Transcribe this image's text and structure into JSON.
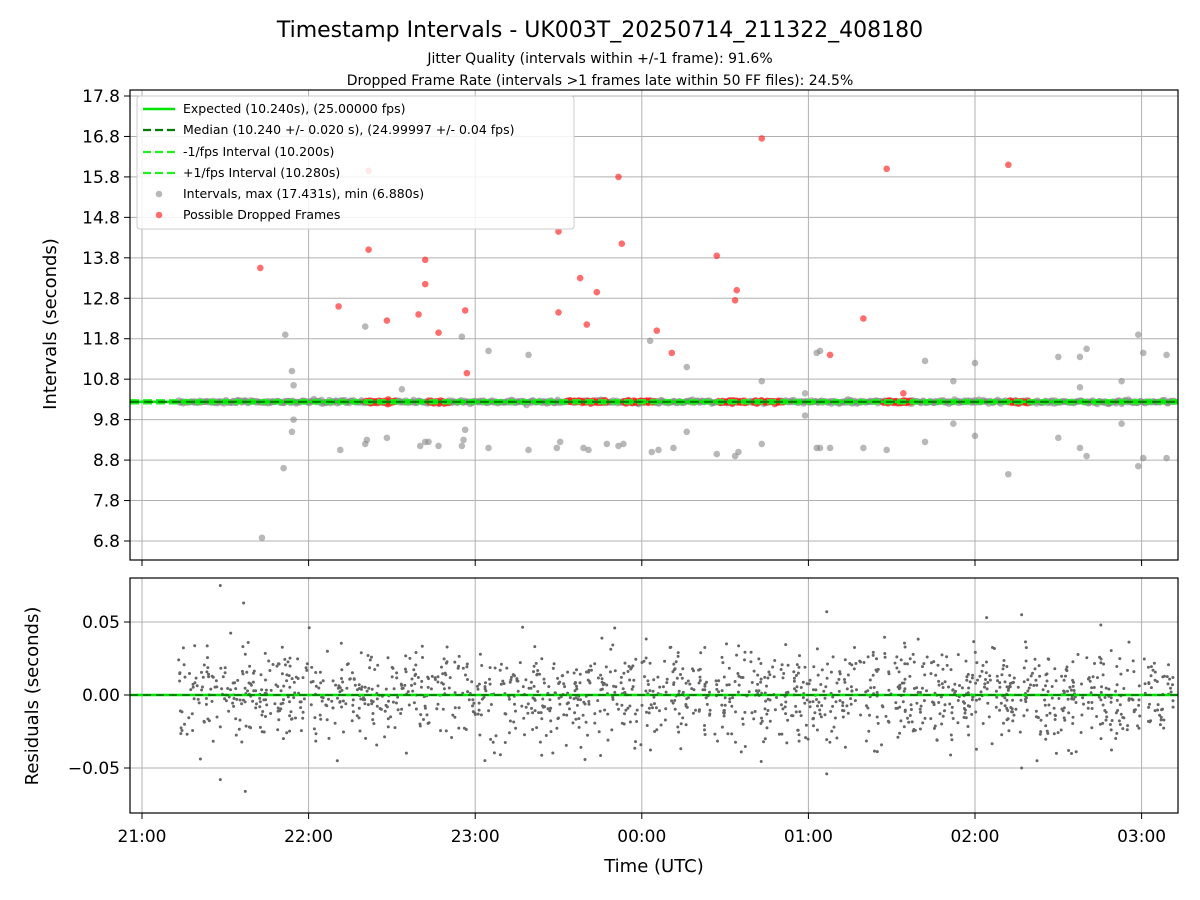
{
  "chart_data": {
    "type": "scatter",
    "title": "Timestamp Intervals - UK003T_20250714_211322_408180",
    "subtitle_lines": [
      "Jitter Quality (intervals within +/-1 frame): 91.6%",
      "Dropped Frame Rate (intervals >1 frames late within 50 FF files): 24.5%"
    ],
    "x_ticks": [
      "21:00",
      "22:00",
      "23:00",
      "00:00",
      "01:00",
      "02:00",
      "03:00"
    ],
    "xlabel": "Time (UTC)",
    "colors": {
      "expected": "#00e600",
      "median": "#007a00",
      "fps_bounds": "#22ee22",
      "intervals": "#888888",
      "dropped": "#ff2020",
      "residuals": "#666666",
      "grid": "#b0b0b0"
    },
    "top": {
      "ylabel": "Intervals (seconds)",
      "y_ticks": [
        "6.8",
        "7.8",
        "8.8",
        "9.8",
        "10.8",
        "11.8",
        "12.8",
        "13.8",
        "14.8",
        "15.8",
        "16.8",
        "17.8"
      ],
      "ylim": [
        6.35,
        17.95
      ],
      "xlim_hours": [
        20.92,
        27.2
      ],
      "data_start_hours": 21.22,
      "data_end_hours": 27.2,
      "expected_interval": 10.24,
      "minus_fps_interval": 10.2,
      "plus_fps_interval": 10.28,
      "max_interval": 17.431,
      "min_interval": 6.88,
      "legend": [
        {
          "label": "Expected (10.240s), (25.00000 fps)",
          "style": "solid"
        },
        {
          "label": "Median (10.240 +/- 0.020 s), (24.99997 +/- 0.04 fps)",
          "style": "dashed-dark"
        },
        {
          "label": "-1/fps Interval (10.200s)",
          "style": "dashed"
        },
        {
          "label": "+1/fps Interval (10.280s)",
          "style": "dashed"
        },
        {
          "label": "Intervals, max (17.431s), min (6.880s)",
          "style": "gray-dot"
        },
        {
          "label": "Possible Dropped Frames",
          "style": "red-dot"
        }
      ],
      "legend_location": "top-left",
      "dropped_points": [
        {
          "t": 21.71,
          "y": 13.55
        },
        {
          "t": 22.18,
          "y": 12.6
        },
        {
          "t": 22.36,
          "y": 14.0
        },
        {
          "t": 22.36,
          "y": 15.95
        },
        {
          "t": 22.47,
          "y": 12.25
        },
        {
          "t": 22.66,
          "y": 12.4
        },
        {
          "t": 22.7,
          "y": 13.75
        },
        {
          "t": 22.7,
          "y": 13.15
        },
        {
          "t": 22.78,
          "y": 11.95
        },
        {
          "t": 22.94,
          "y": 12.5
        },
        {
          "t": 22.95,
          "y": 10.95
        },
        {
          "t": 23.5,
          "y": 14.45
        },
        {
          "t": 23.5,
          "y": 12.45
        },
        {
          "t": 23.63,
          "y": 13.3
        },
        {
          "t": 23.67,
          "y": 12.15
        },
        {
          "t": 23.73,
          "y": 12.95
        },
        {
          "t": 23.86,
          "y": 15.8
        },
        {
          "t": 23.88,
          "y": 14.15
        },
        {
          "t": 24.09,
          "y": 12.0
        },
        {
          "t": 24.18,
          "y": 11.45
        },
        {
          "t": 24.45,
          "y": 13.85
        },
        {
          "t": 24.56,
          "y": 12.75
        },
        {
          "t": 24.57,
          "y": 13.0
        },
        {
          "t": 24.72,
          "y": 16.75
        },
        {
          "t": 25.13,
          "y": 11.4
        },
        {
          "t": 25.33,
          "y": 12.3
        },
        {
          "t": 25.47,
          "y": 16.0
        },
        {
          "t": 26.2,
          "y": 16.1
        },
        {
          "t": 25.57,
          "y": 10.45
        }
      ],
      "dropped_clusters": [
        {
          "from": 22.34,
          "to": 22.52
        },
        {
          "from": 22.72,
          "to": 22.84
        },
        {
          "from": 23.55,
          "to": 23.79
        },
        {
          "from": 23.89,
          "to": 24.08
        },
        {
          "from": 24.46,
          "to": 24.63
        },
        {
          "from": 24.67,
          "to": 24.85
        },
        {
          "from": 25.45,
          "to": 25.62
        },
        {
          "from": 26.2,
          "to": 26.32
        }
      ],
      "gray_outliers": [
        {
          "t": 21.72,
          "y": 6.88
        },
        {
          "t": 21.85,
          "y": 8.6
        },
        {
          "t": 21.86,
          "y": 11.9
        },
        {
          "t": 21.9,
          "y": 11.0
        },
        {
          "t": 21.91,
          "y": 10.65
        },
        {
          "t": 21.9,
          "y": 9.5
        },
        {
          "t": 21.91,
          "y": 9.8
        },
        {
          "t": 22.19,
          "y": 9.05
        },
        {
          "t": 22.34,
          "y": 12.1
        },
        {
          "t": 22.34,
          "y": 9.2
        },
        {
          "t": 22.35,
          "y": 9.3
        },
        {
          "t": 22.47,
          "y": 9.35
        },
        {
          "t": 22.56,
          "y": 10.55
        },
        {
          "t": 22.67,
          "y": 9.15
        },
        {
          "t": 22.7,
          "y": 9.25
        },
        {
          "t": 22.72,
          "y": 9.25
        },
        {
          "t": 22.78,
          "y": 9.15
        },
        {
          "t": 22.92,
          "y": 9.15
        },
        {
          "t": 22.93,
          "y": 9.3
        },
        {
          "t": 22.92,
          "y": 11.85
        },
        {
          "t": 22.94,
          "y": 9.55
        },
        {
          "t": 23.08,
          "y": 11.5
        },
        {
          "t": 23.08,
          "y": 9.1
        },
        {
          "t": 23.32,
          "y": 11.4
        },
        {
          "t": 23.32,
          "y": 9.05
        },
        {
          "t": 23.49,
          "y": 9.1
        },
        {
          "t": 23.51,
          "y": 9.25
        },
        {
          "t": 23.65,
          "y": 9.1
        },
        {
          "t": 23.68,
          "y": 9.05
        },
        {
          "t": 23.79,
          "y": 9.2
        },
        {
          "t": 23.86,
          "y": 9.15
        },
        {
          "t": 23.89,
          "y": 9.2
        },
        {
          "t": 24.05,
          "y": 11.75
        },
        {
          "t": 24.06,
          "y": 9.0
        },
        {
          "t": 24.1,
          "y": 9.05
        },
        {
          "t": 24.19,
          "y": 9.1
        },
        {
          "t": 24.27,
          "y": 11.1
        },
        {
          "t": 24.27,
          "y": 9.5
        },
        {
          "t": 24.45,
          "y": 8.95
        },
        {
          "t": 24.56,
          "y": 8.9
        },
        {
          "t": 24.58,
          "y": 9.0
        },
        {
          "t": 24.72,
          "y": 9.2
        },
        {
          "t": 24.72,
          "y": 10.75
        },
        {
          "t": 24.98,
          "y": 9.9
        },
        {
          "t": 24.98,
          "y": 10.45
        },
        {
          "t": 25.05,
          "y": 11.45
        },
        {
          "t": 25.07,
          "y": 11.5
        },
        {
          "t": 25.05,
          "y": 9.1
        },
        {
          "t": 25.07,
          "y": 9.1
        },
        {
          "t": 25.13,
          "y": 9.1
        },
        {
          "t": 25.33,
          "y": 9.1
        },
        {
          "t": 25.47,
          "y": 9.05
        },
        {
          "t": 25.7,
          "y": 11.25
        },
        {
          "t": 25.7,
          "y": 9.25
        },
        {
          "t": 25.87,
          "y": 10.75
        },
        {
          "t": 25.87,
          "y": 9.7
        },
        {
          "t": 26.0,
          "y": 11.2
        },
        {
          "t": 26.0,
          "y": 9.4
        },
        {
          "t": 26.2,
          "y": 8.45
        },
        {
          "t": 26.5,
          "y": 11.35
        },
        {
          "t": 26.5,
          "y": 9.35
        },
        {
          "t": 26.63,
          "y": 11.35
        },
        {
          "t": 26.63,
          "y": 10.6
        },
        {
          "t": 26.63,
          "y": 9.1
        },
        {
          "t": 26.67,
          "y": 11.55
        },
        {
          "t": 26.67,
          "y": 8.9
        },
        {
          "t": 26.88,
          "y": 10.75
        },
        {
          "t": 26.88,
          "y": 9.7
        },
        {
          "t": 26.98,
          "y": 11.9
        },
        {
          "t": 26.98,
          "y": 8.65
        },
        {
          "t": 27.01,
          "y": 11.45
        },
        {
          "t": 27.01,
          "y": 8.85
        },
        {
          "t": 27.15,
          "y": 11.4
        },
        {
          "t": 27.15,
          "y": 8.85
        }
      ]
    },
    "bottom": {
      "ylabel": "Residuals (seconds)",
      "y_ticks": [
        "0.05",
        "0.00",
        "−0.05"
      ],
      "ylim": [
        -0.08,
        0.08
      ],
      "mean_residual": 0.0,
      "max_residual": 0.075,
      "min_residual": -0.066,
      "notable_points": [
        {
          "t": 21.47,
          "y": 0.075
        },
        {
          "t": 21.61,
          "y": 0.063
        },
        {
          "t": 21.47,
          "y": -0.058
        },
        {
          "t": 21.62,
          "y": -0.066
        },
        {
          "t": 25.11,
          "y": 0.057
        },
        {
          "t": 25.11,
          "y": -0.054
        },
        {
          "t": 26.07,
          "y": 0.053
        },
        {
          "t": 26.28,
          "y": 0.055
        },
        {
          "t": 26.28,
          "y": -0.05
        }
      ]
    }
  }
}
